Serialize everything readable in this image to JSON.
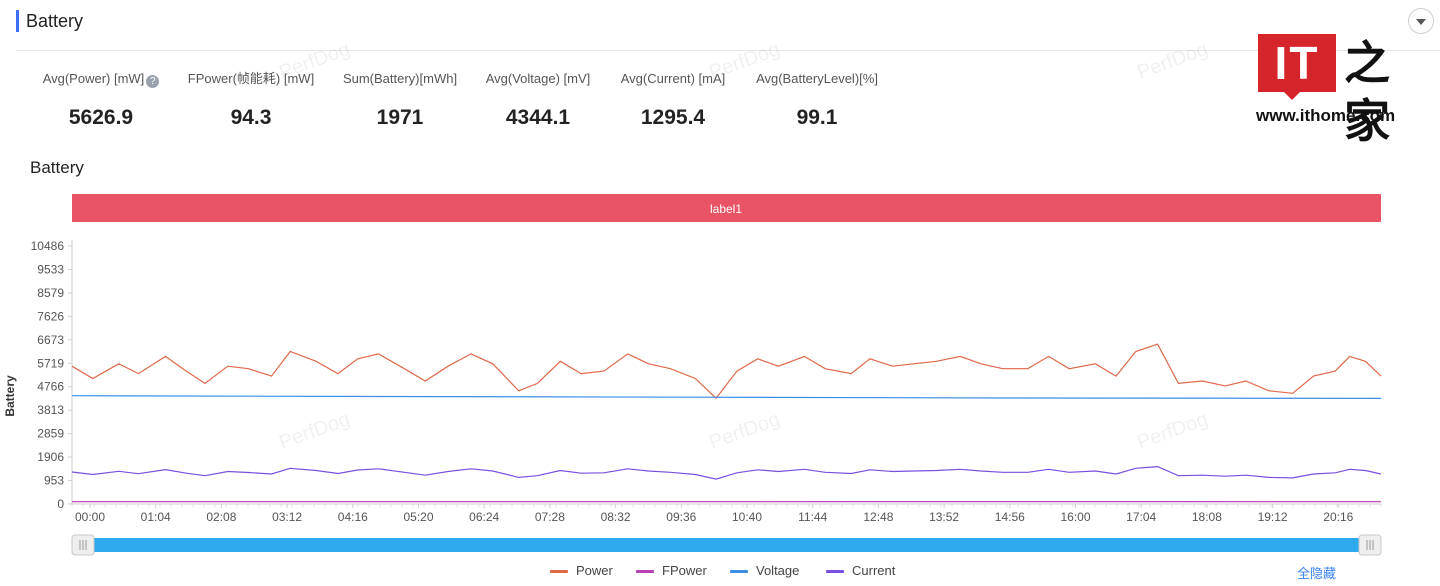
{
  "panel": {
    "title": "Battery",
    "collapse_icon": "chevron-down-icon"
  },
  "stats": [
    {
      "label": "Avg(Power) [mW]",
      "value": "5626.9",
      "help": "?"
    },
    {
      "label": "FPower(帧能耗) [mW]",
      "value": "94.3"
    },
    {
      "label": "Sum(Battery)[mWh]",
      "value": "1971"
    },
    {
      "label": "Avg(Voltage) [mV]",
      "value": "4344.1"
    },
    {
      "label": "Avg(Current) [mA]",
      "value": "1295.4"
    },
    {
      "label": "Avg(BatteryLevel)[%]",
      "value": "99.1"
    }
  ],
  "brand": {
    "it": "IT",
    "zh": "之家",
    "url": "www.ithome.com"
  },
  "watermark": "PerfDog",
  "section_title": "Battery",
  "chart_data": {
    "type": "line",
    "label_band": "label1",
    "ylabel": "Battery",
    "y_ticks": [
      "0",
      "953",
      "1906",
      "2859",
      "3813",
      "4766",
      "5719",
      "6673",
      "7626",
      "8579",
      "9533",
      "10486"
    ],
    "ylim": [
      0,
      10486
    ],
    "x_ticks": [
      "00:00",
      "01:04",
      "02:08",
      "03:12",
      "04:16",
      "05:20",
      "06:24",
      "07:28",
      "08:32",
      "09:36",
      "10:40",
      "11:44",
      "12:48",
      "13:52",
      "14:56",
      "16:00",
      "17:04",
      "18:08",
      "19:12",
      "20:16"
    ],
    "x_range_minutes": [
      0,
      1260
    ],
    "grid": false,
    "legend_position": "bottom",
    "series": [
      {
        "name": "Power",
        "color": "#e0684a",
        "x": [
          0,
          20,
          45,
          64,
          90,
          110,
          128,
          150,
          170,
          192,
          210,
          235,
          256,
          275,
          295,
          320,
          340,
          362,
          384,
          405,
          430,
          448,
          470,
          490,
          512,
          535,
          555,
          576,
          600,
          620,
          640,
          660,
          680,
          705,
          725,
          750,
          768,
          790,
          810,
          832,
          855,
          875,
          896,
          920,
          940,
          960,
          985,
          1005,
          1024,
          1045,
          1065,
          1088,
          1110,
          1130,
          1152,
          1175,
          1195,
          1216,
          1230,
          1245,
          1260
        ],
        "values": [
          5600,
          5100,
          5700,
          5300,
          6000,
          5400,
          4900,
          5600,
          5500,
          5200,
          6200,
          5800,
          5300,
          5900,
          6100,
          5500,
          5000,
          5600,
          6100,
          5700,
          4600,
          4900,
          5800,
          5300,
          5400,
          6100,
          5700,
          5500,
          5100,
          4300,
          5400,
          5900,
          5600,
          6000,
          5500,
          5300,
          5900,
          5600,
          5700,
          5800,
          6000,
          5700,
          5500,
          5500,
          6000,
          5500,
          5700,
          5200,
          6200,
          6500,
          4900,
          5000,
          4800,
          5000,
          4600,
          4500,
          5200,
          5400,
          6000,
          5800,
          5200
        ]
      },
      {
        "name": "FPower",
        "color": "#b83fb4",
        "x": [
          0,
          300,
          600,
          900,
          1260
        ],
        "values": [
          94,
          95,
          93,
          96,
          94
        ]
      },
      {
        "name": "Voltage",
        "color": "#3a8ee6",
        "x": [
          0,
          300,
          600,
          900,
          1260
        ],
        "values": [
          4400,
          4370,
          4340,
          4310,
          4290
        ]
      },
      {
        "name": "Current",
        "color": "#7a4fe0",
        "x": [
          0,
          20,
          45,
          64,
          90,
          110,
          128,
          150,
          170,
          192,
          210,
          235,
          256,
          275,
          295,
          320,
          340,
          362,
          384,
          405,
          430,
          448,
          470,
          490,
          512,
          535,
          555,
          576,
          600,
          620,
          640,
          660,
          680,
          705,
          725,
          750,
          768,
          790,
          810,
          832,
          855,
          875,
          896,
          920,
          940,
          960,
          985,
          1005,
          1024,
          1045,
          1065,
          1088,
          1110,
          1130,
          1152,
          1175,
          1195,
          1216,
          1230,
          1245,
          1260
        ],
        "values": [
          1300,
          1200,
          1330,
          1230,
          1400,
          1250,
          1150,
          1320,
          1280,
          1220,
          1450,
          1360,
          1240,
          1380,
          1430,
          1290,
          1170,
          1320,
          1430,
          1340,
          1080,
          1150,
          1360,
          1250,
          1270,
          1430,
          1340,
          1290,
          1200,
          1010,
          1270,
          1390,
          1320,
          1410,
          1290,
          1240,
          1390,
          1320,
          1340,
          1360,
          1410,
          1340,
          1290,
          1290,
          1410,
          1290,
          1340,
          1220,
          1450,
          1520,
          1150,
          1170,
          1130,
          1170,
          1080,
          1060,
          1220,
          1270,
          1410,
          1360,
          1220
        ]
      }
    ]
  },
  "legend": {
    "hide_all": "全隐藏"
  }
}
